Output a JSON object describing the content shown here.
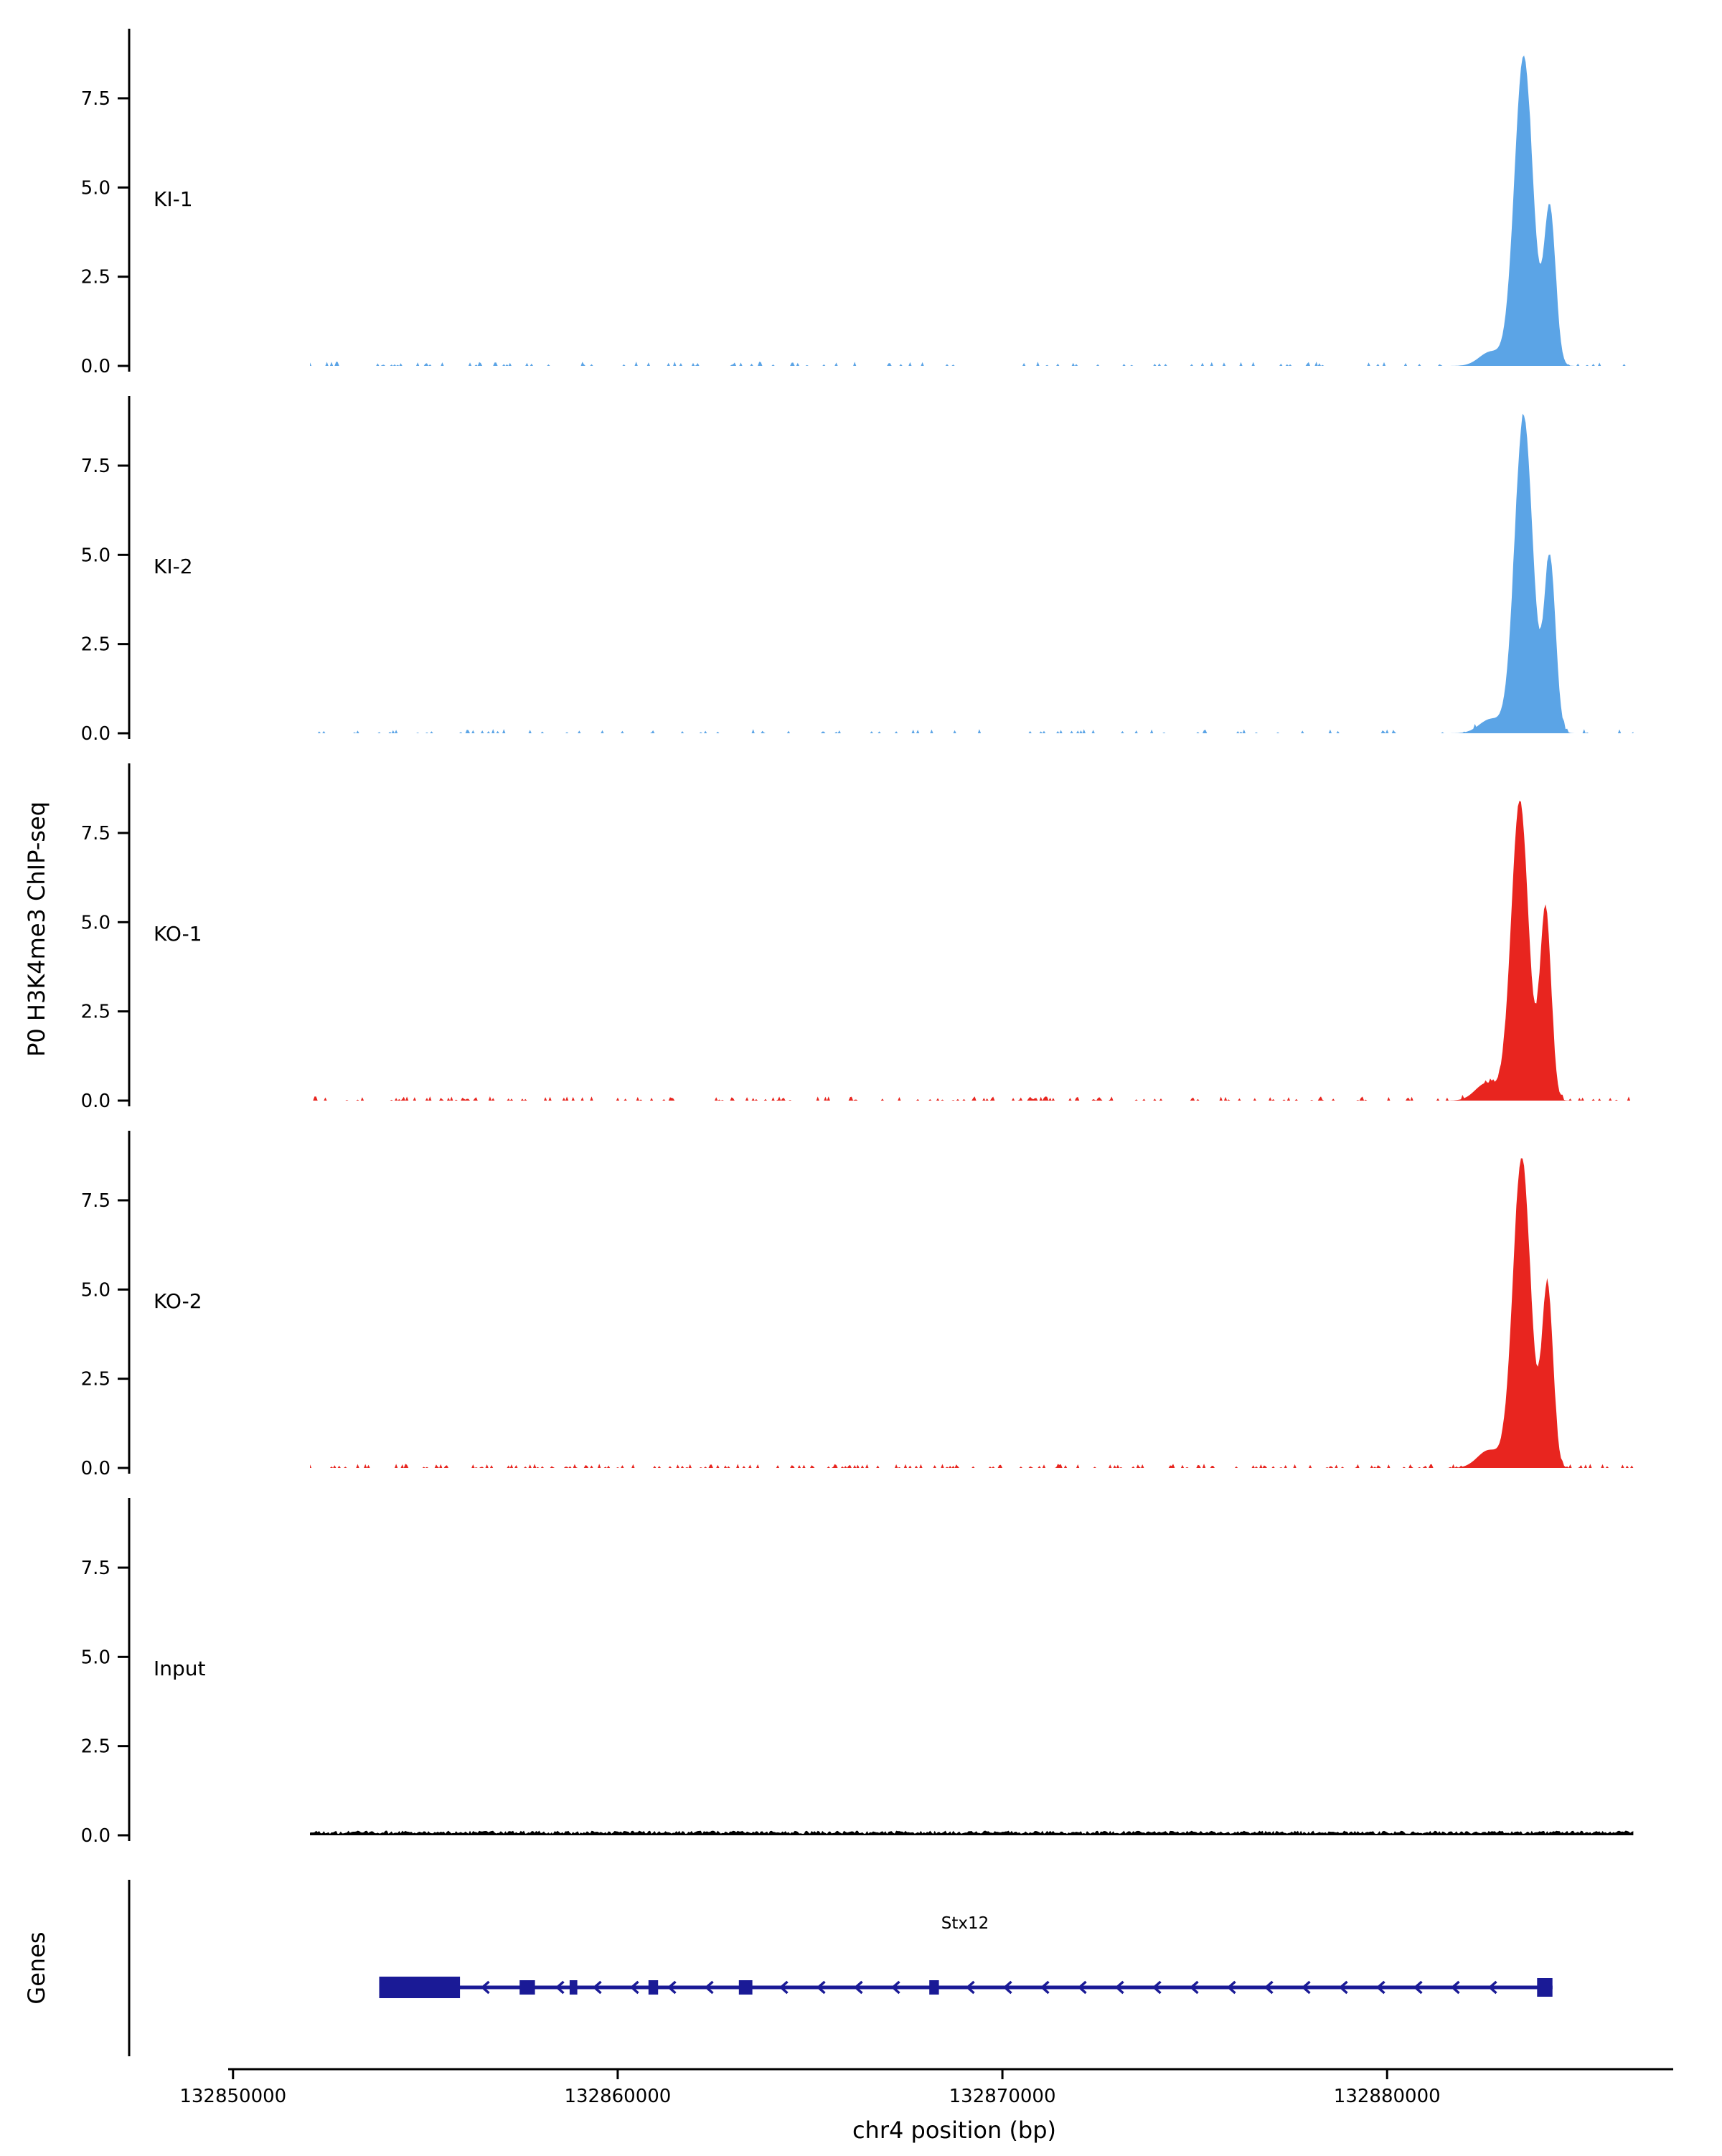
{
  "chart_data": {
    "type": "area",
    "title": "",
    "ylabel": "P0 H3K4me3 ChIP-seq",
    "xlabel": "chr4 position (bp)",
    "x_axis": {
      "chromosome": "chr4",
      "unit": "bp",
      "ticks": [
        132850000,
        132860000,
        132870000,
        132880000
      ],
      "tick_labels": [
        "132850000",
        "132860000",
        "132870000",
        "132880000"
      ],
      "range": [
        132847300,
        132887400
      ]
    },
    "y_axis": {
      "ticks": [
        0.0,
        2.5,
        5.0,
        7.5
      ],
      "tick_labels": [
        "0.0",
        "2.5",
        "5.0",
        "7.5"
      ],
      "range": [
        0,
        9.45
      ]
    },
    "data_range": [
      132852000,
      132886400
    ],
    "tracks": [
      {
        "label": "KI-1",
        "color": "#5BA4E6",
        "noise_density": 0.12,
        "noise_amp": 0.1,
        "peaks": [
          {
            "center": 132882700,
            "height": 0.4,
            "sigma": 300
          },
          {
            "center": 132883550,
            "height": 8.7,
            "sigma": 240
          },
          {
            "center": 132884230,
            "height": 4.4,
            "sigma": 150
          }
        ]
      },
      {
        "label": "KI-2",
        "color": "#5BA4E6",
        "noise_density": 0.12,
        "noise_amp": 0.1,
        "peaks": [
          {
            "center": 132882700,
            "height": 0.4,
            "sigma": 300
          },
          {
            "center": 132883550,
            "height": 8.9,
            "sigma": 235
          },
          {
            "center": 132884230,
            "height": 4.9,
            "sigma": 150
          }
        ]
      },
      {
        "label": "KO-1",
        "color": "#E8251F",
        "noise_density": 0.22,
        "noise_amp": 0.1,
        "peaks": [
          {
            "center": 132882600,
            "height": 0.5,
            "sigma": 300
          },
          {
            "center": 132883450,
            "height": 8.4,
            "sigma": 225
          },
          {
            "center": 132884120,
            "height": 5.4,
            "sigma": 145
          }
        ]
      },
      {
        "label": "KO-2",
        "color": "#E8251F",
        "noise_density": 0.22,
        "noise_amp": 0.1,
        "peaks": [
          {
            "center": 132882650,
            "height": 0.5,
            "sigma": 300
          },
          {
            "center": 132883500,
            "height": 8.7,
            "sigma": 230
          },
          {
            "center": 132884170,
            "height": 5.1,
            "sigma": 145
          }
        ]
      },
      {
        "label": "Input",
        "color": "#000000",
        "noise_density": 1.0,
        "noise_amp": 0.09,
        "peaks": []
      }
    ]
  },
  "genes": {
    "label": "Genes",
    "gene": {
      "name": "Stx12",
      "chromosome": "chr4",
      "start": 132853800,
      "end": 132884300,
      "strand": "-",
      "color": "#1A1A96",
      "exons": [
        [
          132853800,
          132855900
        ],
        [
          132857450,
          132857850
        ],
        [
          132858750,
          132858950
        ],
        [
          132860800,
          132861050
        ],
        [
          132863150,
          132863500
        ],
        [
          132868100,
          132868350
        ],
        [
          132883900,
          132884300
        ]
      ]
    }
  }
}
